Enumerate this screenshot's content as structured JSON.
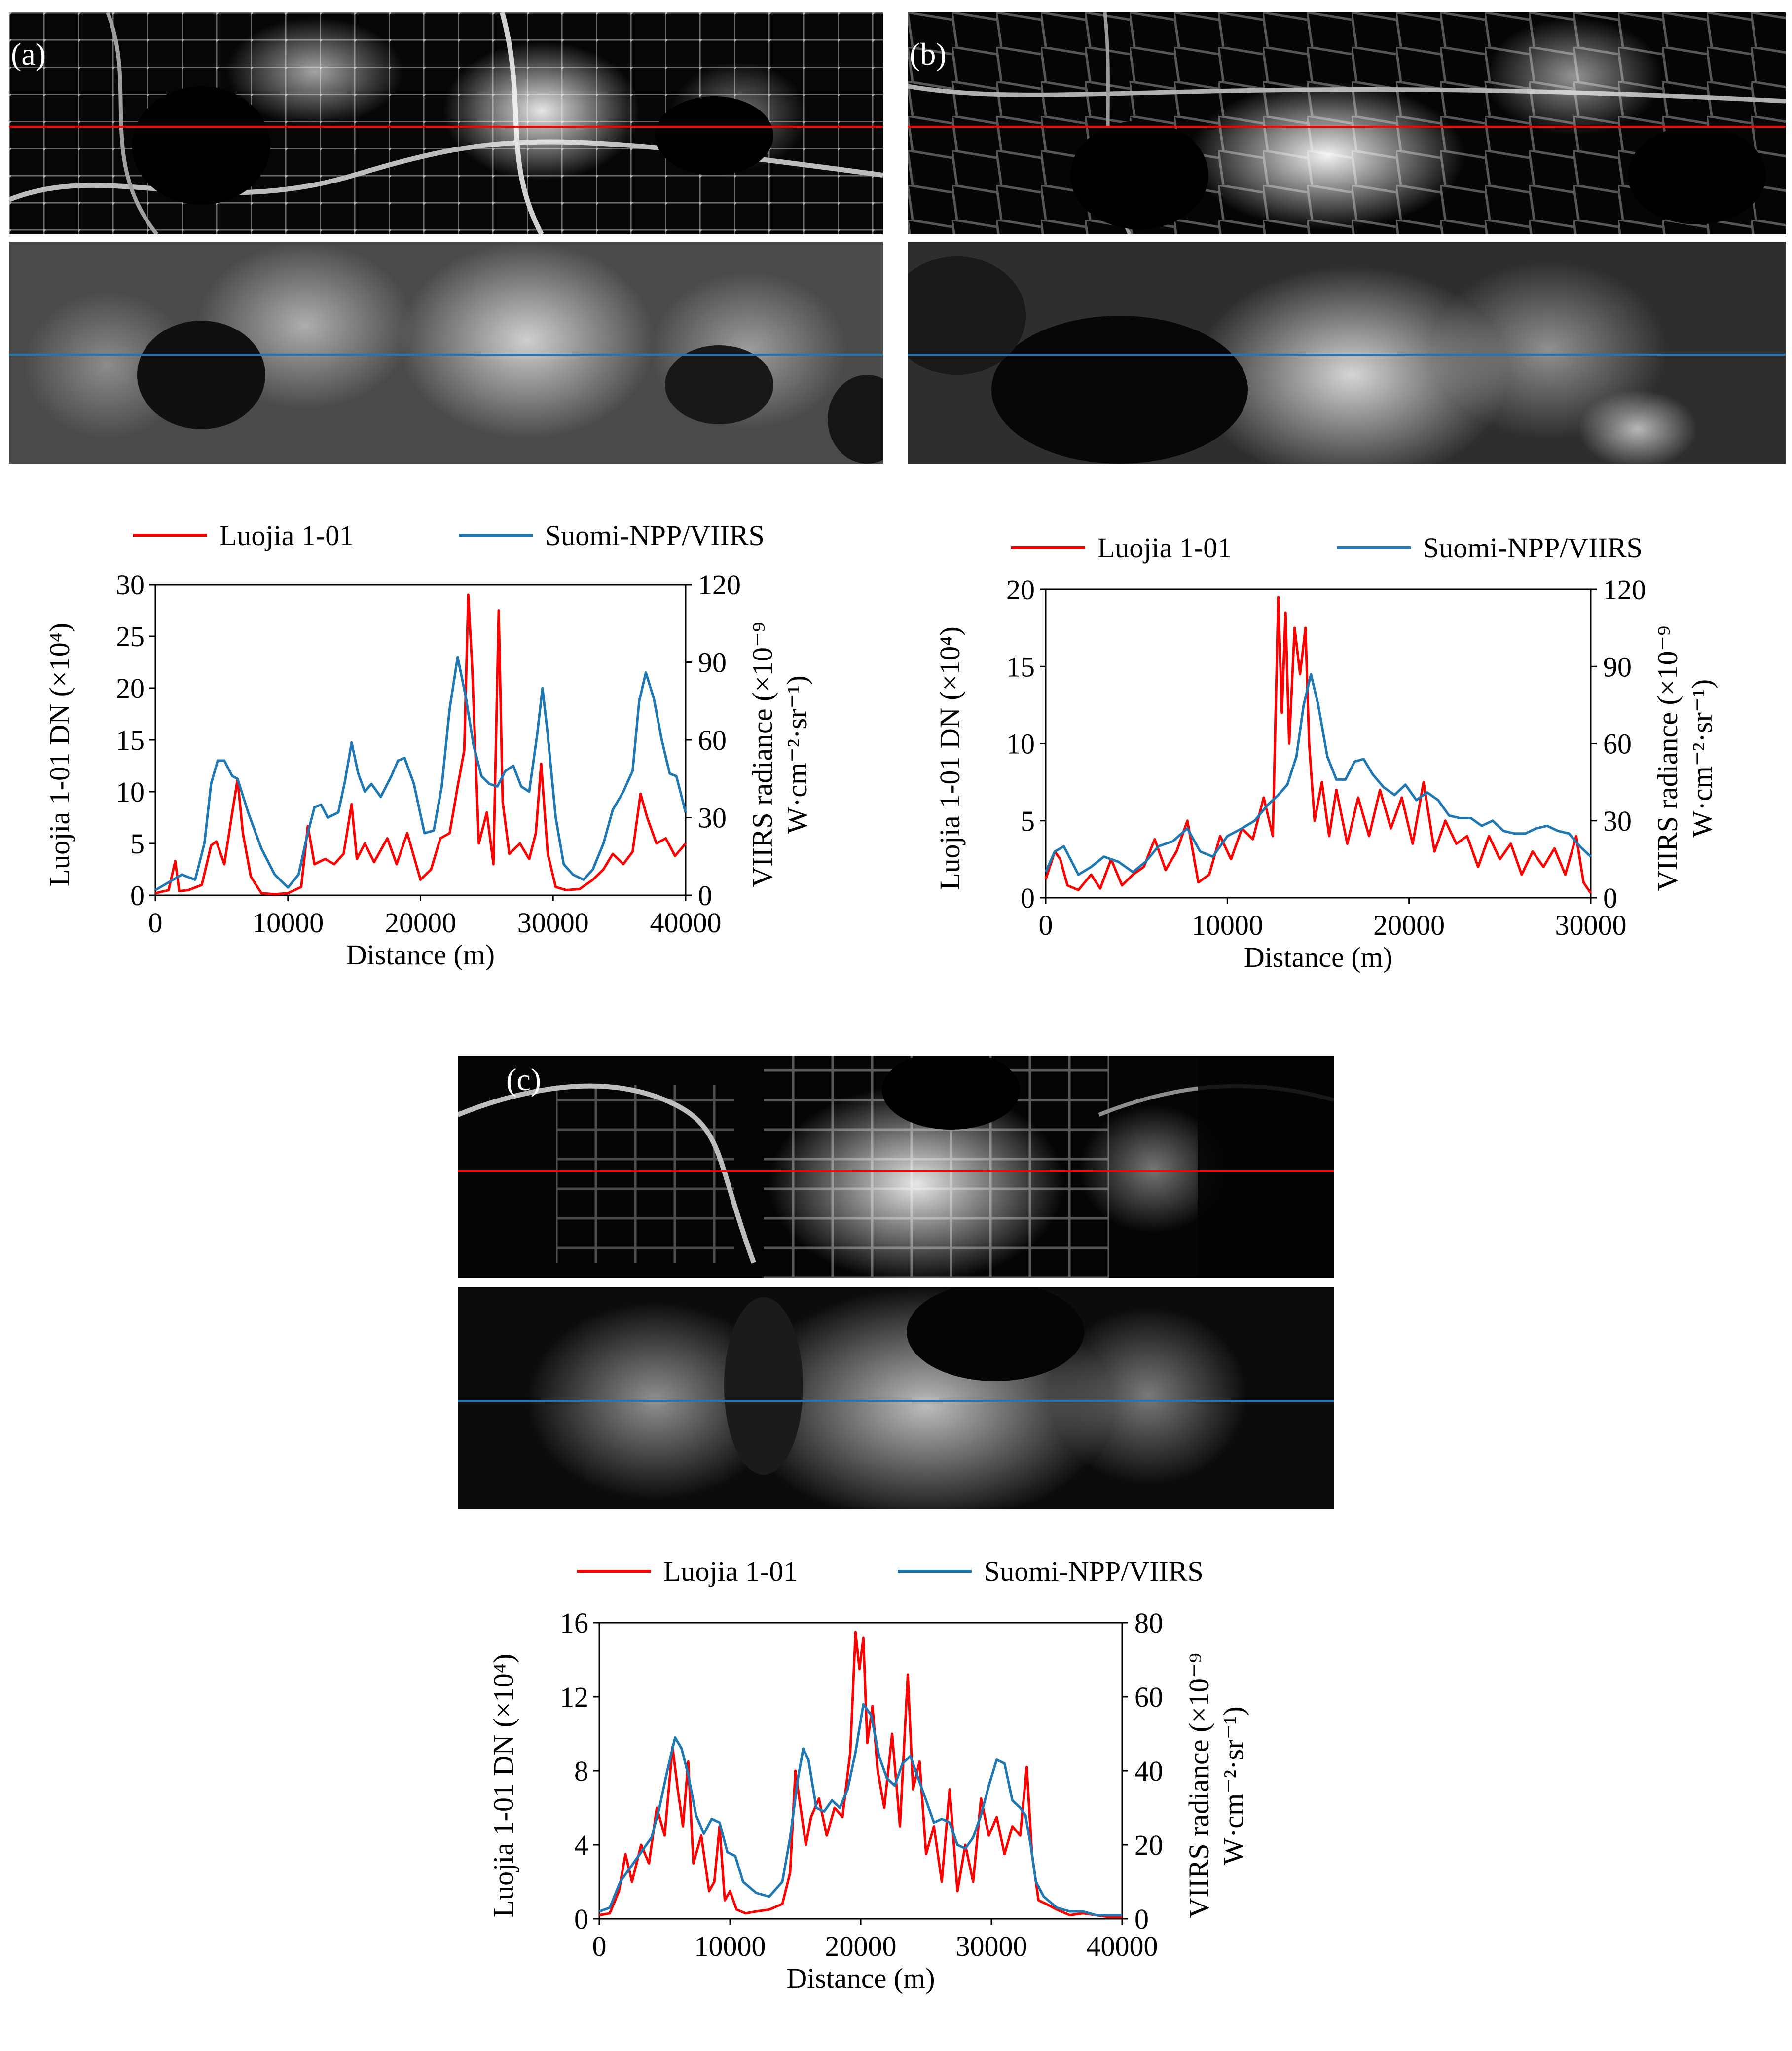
{
  "panels": [
    {
      "label": "(a)"
    },
    {
      "label": "(b)"
    },
    {
      "label": "(c)"
    }
  ],
  "colors": {
    "luojia": "#ff0000",
    "viirs": "#1f78b4",
    "axis": "#000000"
  },
  "chart_data": [
    {
      "type": "line",
      "panel": "(a)",
      "legend": [
        "Luojia 1-01",
        "Suomi-NPP/VIIRS"
      ],
      "xlabel": "Distance (m)",
      "ylabel_left": "Luojia 1-01 DN (×10⁴)",
      "ylabel_right": "VIIRS radiance (×10⁻⁹ W·cm⁻²·sr⁻¹)",
      "ylabel_right_line1": "VIIRS radiance (×10⁻⁹",
      "ylabel_right_line2": "W·cm⁻²·sr⁻¹)",
      "xlim": [
        0,
        40000
      ],
      "ylim_left": [
        0,
        30
      ],
      "ylim_right": [
        0,
        120
      ],
      "x_ticks": [
        "0",
        "10000",
        "20000",
        "30000",
        "40000"
      ],
      "y_left_ticks": [
        "0",
        "5",
        "10",
        "15",
        "20",
        "25",
        "30"
      ],
      "y_right_ticks": [
        "0",
        "30",
        "60",
        "90",
        "120"
      ],
      "series": [
        {
          "name": "Luojia 1-01",
          "axis": "left",
          "x": [
            0,
            1000,
            1500,
            1800,
            2500,
            3500,
            4200,
            4600,
            5200,
            5800,
            6200,
            6600,
            7200,
            8000,
            9000,
            10000,
            11000,
            11500,
            12000,
            12800,
            13500,
            14200,
            14800,
            15200,
            15800,
            16500,
            17500,
            18200,
            19000,
            20000,
            20800,
            21500,
            22200,
            22800,
            23300,
            23600,
            23900,
            24400,
            25000,
            25500,
            25900,
            26200,
            26700,
            27500,
            28200,
            28700,
            29100,
            29600,
            30200,
            31000,
            32000,
            33000,
            33800,
            34500,
            35300,
            36000,
            36600,
            37100,
            37800,
            38500,
            39200,
            40000
          ],
          "values": [
            0.2,
            0.5,
            3.3,
            0.4,
            0.5,
            1.0,
            4.8,
            5.2,
            3.0,
            8.0,
            11.2,
            6.0,
            1.8,
            0.2,
            0.1,
            0.2,
            0.8,
            6.7,
            3.0,
            3.5,
            3.0,
            4.0,
            8.8,
            3.5,
            5.0,
            3.2,
            5.5,
            3.0,
            6.0,
            1.5,
            2.5,
            5.5,
            6.0,
            10.5,
            14.0,
            29.0,
            22.0,
            5.0,
            8.0,
            3.0,
            27.5,
            9.0,
            4.0,
            5.0,
            3.5,
            6.0,
            12.7,
            4.0,
            0.8,
            0.5,
            0.6,
            1.5,
            2.5,
            4.0,
            3.0,
            4.2,
            9.8,
            7.5,
            5.0,
            5.5,
            3.8,
            5.0
          ]
        },
        {
          "name": "Suomi-NPP/VIIRS",
          "axis": "right",
          "x": [
            0,
            1000,
            2000,
            3000,
            3700,
            4200,
            4700,
            5200,
            5800,
            6200,
            7000,
            8000,
            9000,
            10000,
            10800,
            11400,
            12000,
            12500,
            13000,
            13800,
            14300,
            14800,
            15300,
            15800,
            16300,
            17000,
            17800,
            18300,
            18800,
            19500,
            20300,
            21000,
            21600,
            22200,
            22800,
            23400,
            24000,
            24600,
            25200,
            25800,
            26400,
            27000,
            27600,
            28200,
            28800,
            29200,
            29600,
            30200,
            30800,
            31500,
            32300,
            33000,
            33800,
            34500,
            35300,
            36000,
            36500,
            37000,
            37600,
            38200,
            38800,
            39300,
            40000
          ],
          "values": [
            2,
            5,
            8,
            6,
            20,
            43,
            52,
            52,
            46,
            45,
            32,
            18,
            8,
            3,
            8,
            22,
            34,
            35,
            30,
            32,
            44,
            59,
            47,
            40,
            43,
            38,
            46,
            52,
            53,
            43,
            24,
            25,
            42,
            72,
            92,
            77,
            58,
            46,
            43,
            42,
            48,
            50,
            42,
            40,
            62,
            80,
            62,
            30,
            12,
            8,
            6,
            10,
            20,
            33,
            40,
            48,
            75,
            86,
            76,
            60,
            47,
            46,
            32
          ]
        }
      ]
    },
    {
      "type": "line",
      "panel": "(b)",
      "legend": [
        "Luojia 1-01",
        "Suomi-NPP/VIIRS"
      ],
      "xlabel": "Distance (m)",
      "ylabel_left": "Luojia 1-01 DN (×10⁴)",
      "ylabel_right": "VIIRS radiance (×10⁻⁹ W·cm⁻²·sr⁻¹)",
      "ylabel_right_line1": "VIIRS radiance (×10⁻⁹",
      "ylabel_right_line2": "W·cm⁻²·sr⁻¹)",
      "xlim": [
        0,
        30000
      ],
      "ylim_left": [
        0,
        20
      ],
      "ylim_right": [
        0,
        120
      ],
      "x_ticks": [
        "0",
        "10000",
        "20000",
        "30000"
      ],
      "y_left_ticks": [
        "0",
        "5",
        "10",
        "15",
        "20"
      ],
      "y_right_ticks": [
        "0",
        "30",
        "60",
        "90",
        "120"
      ],
      "series": [
        {
          "name": "Luojia 1-01",
          "axis": "left",
          "x": [
            0,
            500,
            800,
            1200,
            1800,
            2500,
            3000,
            3600,
            4200,
            4800,
            5400,
            6000,
            6600,
            7200,
            7800,
            8400,
            9000,
            9600,
            10200,
            10800,
            11400,
            12000,
            12500,
            12800,
            13000,
            13200,
            13400,
            13700,
            14000,
            14300,
            14500,
            14800,
            15200,
            15600,
            16000,
            16600,
            17200,
            17800,
            18400,
            19000,
            19600,
            20200,
            20800,
            21400,
            22000,
            22600,
            23200,
            23800,
            24400,
            25000,
            25600,
            26200,
            26800,
            27400,
            28000,
            28600,
            29200,
            29600,
            30000
          ],
          "values": [
            1.2,
            3.0,
            2.5,
            0.8,
            0.5,
            1.5,
            0.6,
            2.5,
            0.8,
            1.5,
            2.0,
            3.8,
            1.8,
            3.0,
            5.0,
            1.0,
            1.5,
            4.0,
            2.5,
            4.5,
            3.8,
            6.5,
            4.0,
            19.5,
            12.0,
            18.5,
            10.0,
            17.5,
            14.5,
            17.5,
            10.0,
            5.0,
            7.5,
            4.0,
            7.0,
            3.5,
            6.5,
            4.0,
            7.0,
            4.5,
            6.5,
            3.5,
            7.5,
            3.0,
            5.0,
            3.5,
            4.0,
            2.0,
            4.0,
            2.5,
            3.5,
            1.5,
            3.0,
            2.0,
            3.2,
            1.5,
            4.0,
            1.0,
            0.3
          ]
        },
        {
          "name": "Suomi-NPP/VIIRS",
          "axis": "right",
          "x": [
            0,
            500,
            1000,
            1800,
            2500,
            3200,
            4000,
            4800,
            5500,
            6200,
            7000,
            7800,
            8500,
            9200,
            10000,
            10800,
            11500,
            12200,
            12800,
            13300,
            13800,
            14200,
            14600,
            15000,
            15500,
            16000,
            16500,
            17000,
            17500,
            18000,
            18600,
            19200,
            19800,
            20400,
            21000,
            21600,
            22200,
            22800,
            23400,
            24000,
            24600,
            25200,
            25800,
            26400,
            27000,
            27600,
            28200,
            28800,
            29400,
            30000
          ],
          "values": [
            10,
            18,
            20,
            9,
            12,
            16,
            14,
            10,
            14,
            20,
            22,
            27,
            18,
            16,
            24,
            27,
            30,
            36,
            40,
            44,
            55,
            75,
            87,
            75,
            55,
            46,
            46,
            53,
            54,
            48,
            43,
            40,
            44,
            38,
            41,
            38,
            32,
            31,
            31,
            28,
            30,
            26,
            25,
            25,
            27,
            28,
            26,
            25,
            20,
            16
          ]
        }
      ]
    },
    {
      "type": "line",
      "panel": "(c)",
      "legend": [
        "Luojia 1-01",
        "Suomi-NPP/VIIRS"
      ],
      "xlabel": "Distance (m)",
      "ylabel_left": "Luojia 1-01 DN (×10⁴)",
      "ylabel_right": "VIIRS radiance (×10⁻⁹ W·cm⁻²·sr⁻¹)",
      "ylabel_right_line1": "VIIRS radiance (×10⁻⁹",
      "ylabel_right_line2": "W·cm⁻²·sr⁻¹)",
      "xlim": [
        0,
        40000
      ],
      "ylim_left": [
        0,
        16
      ],
      "ylim_right": [
        0,
        80
      ],
      "x_ticks": [
        "0",
        "10000",
        "20000",
        "30000",
        "40000"
      ],
      "y_left_ticks": [
        "0",
        "4",
        "8",
        "12",
        "16"
      ],
      "y_right_ticks": [
        "0",
        "20",
        "40",
        "60",
        "80"
      ],
      "series": [
        {
          "name": "Luojia 1-01",
          "axis": "left",
          "x": [
            0,
            800,
            1500,
            2000,
            2500,
            3200,
            3800,
            4400,
            5000,
            5600,
            6000,
            6400,
            6800,
            7200,
            7800,
            8400,
            8800,
            9200,
            9600,
            10000,
            10500,
            11200,
            12000,
            13000,
            14000,
            14600,
            15000,
            15400,
            15800,
            16200,
            16800,
            17400,
            18000,
            18600,
            19200,
            19600,
            19900,
            20200,
            20500,
            20900,
            21300,
            21800,
            22400,
            23000,
            23600,
            24000,
            24500,
            25000,
            25600,
            26200,
            26800,
            27400,
            28000,
            28600,
            29200,
            29800,
            30400,
            31000,
            31600,
            32200,
            32700,
            33100,
            33600,
            34200,
            35000,
            36000,
            37000,
            38000,
            39000,
            40000
          ],
          "values": [
            0.2,
            0.3,
            1.5,
            3.5,
            2.0,
            4.0,
            3.0,
            6.0,
            4.5,
            9.3,
            7.0,
            5.0,
            8.5,
            3.0,
            4.5,
            1.5,
            2.0,
            5.0,
            1.0,
            1.5,
            0.5,
            0.3,
            0.4,
            0.5,
            0.8,
            2.5,
            8.0,
            6.0,
            4.0,
            5.5,
            6.5,
            4.5,
            6.0,
            5.5,
            9.0,
            15.5,
            13.5,
            15.2,
            9.5,
            11.5,
            8.0,
            6.0,
            10.0,
            5.0,
            13.2,
            7.0,
            8.5,
            3.5,
            5.0,
            2.0,
            7.0,
            1.5,
            4.0,
            2.0,
            6.5,
            4.5,
            5.5,
            3.5,
            5.0,
            4.5,
            8.2,
            3.5,
            1.0,
            0.8,
            0.5,
            0.2,
            0.3,
            0.2,
            0.1,
            0.1
          ]
        },
        {
          "name": "Suomi-NPP/VIIRS",
          "axis": "right",
          "x": [
            0,
            800,
            1600,
            2400,
            3200,
            4000,
            4600,
            5200,
            5800,
            6300,
            6800,
            7400,
            8000,
            8600,
            9200,
            9800,
            10400,
            11000,
            12000,
            13000,
            14000,
            14600,
            15200,
            15600,
            16000,
            16600,
            17200,
            17800,
            18400,
            19000,
            19600,
            20200,
            20800,
            21400,
            22000,
            22600,
            23200,
            23800,
            24400,
            25000,
            25600,
            26200,
            26800,
            27400,
            28000,
            28600,
            29200,
            29800,
            30400,
            31000,
            31600,
            32200,
            32600,
            33000,
            33400,
            34000,
            35000,
            36000,
            37000,
            38000,
            39000,
            40000
          ],
          "values": [
            2,
            3,
            10,
            14,
            18,
            22,
            30,
            40,
            49,
            46,
            39,
            28,
            23,
            27,
            26,
            18,
            17,
            10,
            7,
            6,
            10,
            22,
            38,
            46,
            43,
            30,
            29,
            32,
            30,
            35,
            45,
            58,
            55,
            44,
            38,
            36,
            42,
            44,
            38,
            32,
            26,
            27,
            26,
            20,
            19,
            22,
            28,
            36,
            43,
            42,
            32,
            30,
            28,
            20,
            10,
            6,
            3,
            2,
            2,
            1,
            1,
            1
          ]
        }
      ]
    }
  ]
}
